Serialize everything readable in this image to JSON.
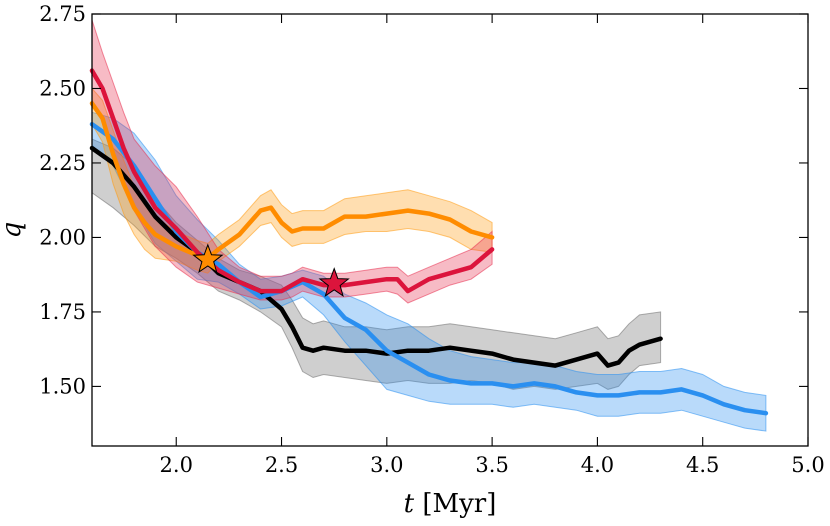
{
  "chart_data": {
    "type": "line",
    "title": "",
    "xlabel_var": "t",
    "xlabel_unit": " [Myr]",
    "ylabel": "q",
    "xlim": [
      1.6,
      5.0
    ],
    "ylim": [
      1.3,
      2.75
    ],
    "xticks": [
      2.0,
      2.5,
      3.0,
      3.5,
      4.0,
      4.5,
      5.0
    ],
    "xtick_labels": [
      "2.0",
      "2.5",
      "3.0",
      "3.5",
      "4.0",
      "4.5",
      "5.0"
    ],
    "yticks": [
      1.5,
      1.75,
      2.0,
      2.25,
      2.5,
      2.75
    ],
    "ytick_labels": [
      "1.50",
      "1.75",
      "2.00",
      "2.25",
      "2.50",
      "2.75"
    ],
    "grid": false,
    "colors": {
      "black": "#000000",
      "blue": "#2a8ff0",
      "orange": "#ff8c00",
      "red": "#dc143c"
    },
    "series": [
      {
        "name": "black",
        "color": "#000000",
        "band_color": "#6e6e6e",
        "x": [
          1.6,
          1.7,
          1.8,
          1.9,
          2.0,
          2.1,
          2.2,
          2.3,
          2.4,
          2.5,
          2.55,
          2.6,
          2.65,
          2.7,
          2.8,
          2.9,
          3.0,
          3.1,
          3.2,
          3.3,
          3.4,
          3.5,
          3.6,
          3.7,
          3.8,
          3.9,
          4.0,
          4.05,
          4.1,
          4.15,
          4.2,
          4.3
        ],
        "y": [
          2.3,
          2.25,
          2.17,
          2.07,
          2.0,
          1.95,
          1.88,
          1.85,
          1.82,
          1.76,
          1.7,
          1.63,
          1.62,
          1.63,
          1.62,
          1.62,
          1.61,
          1.62,
          1.62,
          1.63,
          1.62,
          1.61,
          1.59,
          1.58,
          1.57,
          1.59,
          1.61,
          1.57,
          1.58,
          1.62,
          1.64,
          1.66
        ],
        "upper": [
          2.33,
          2.3,
          2.24,
          2.13,
          2.05,
          1.99,
          1.93,
          1.89,
          1.87,
          1.84,
          1.79,
          1.73,
          1.71,
          1.72,
          1.7,
          1.7,
          1.69,
          1.7,
          1.7,
          1.71,
          1.7,
          1.69,
          1.68,
          1.67,
          1.66,
          1.68,
          1.7,
          1.66,
          1.67,
          1.71,
          1.74,
          1.75
        ],
        "lower": [
          2.15,
          2.1,
          2.04,
          1.97,
          1.93,
          1.88,
          1.82,
          1.79,
          1.75,
          1.7,
          1.63,
          1.55,
          1.53,
          1.54,
          1.53,
          1.52,
          1.51,
          1.52,
          1.51,
          1.51,
          1.52,
          1.51,
          1.49,
          1.5,
          1.49,
          1.5,
          1.51,
          1.49,
          1.5,
          1.54,
          1.57,
          1.58
        ]
      },
      {
        "name": "blue",
        "color": "#2a8ff0",
        "band_color": "#2a8ff0",
        "x": [
          1.6,
          1.7,
          1.8,
          1.9,
          2.0,
          2.1,
          2.2,
          2.3,
          2.4,
          2.5,
          2.6,
          2.7,
          2.8,
          2.9,
          3.0,
          3.1,
          3.2,
          3.3,
          3.4,
          3.5,
          3.6,
          3.7,
          3.8,
          3.9,
          4.0,
          4.1,
          4.2,
          4.3,
          4.4,
          4.5,
          4.6,
          4.7,
          4.8
        ],
        "y": [
          2.38,
          2.33,
          2.24,
          2.13,
          2.02,
          1.95,
          1.91,
          1.85,
          1.8,
          1.82,
          1.85,
          1.81,
          1.73,
          1.69,
          1.62,
          1.58,
          1.54,
          1.52,
          1.51,
          1.51,
          1.5,
          1.51,
          1.5,
          1.48,
          1.47,
          1.47,
          1.48,
          1.48,
          1.49,
          1.47,
          1.44,
          1.42,
          1.41
        ],
        "upper": [
          2.42,
          2.4,
          2.35,
          2.26,
          2.14,
          2.06,
          1.99,
          1.91,
          1.86,
          1.87,
          1.89,
          1.87,
          1.81,
          1.78,
          1.74,
          1.71,
          1.66,
          1.62,
          1.6,
          1.59,
          1.58,
          1.58,
          1.57,
          1.55,
          1.54,
          1.54,
          1.55,
          1.55,
          1.56,
          1.54,
          1.5,
          1.48,
          1.47
        ],
        "lower": [
          2.31,
          2.24,
          2.1,
          1.98,
          1.92,
          1.86,
          1.85,
          1.81,
          1.76,
          1.77,
          1.8,
          1.74,
          1.65,
          1.57,
          1.49,
          1.47,
          1.45,
          1.44,
          1.44,
          1.44,
          1.43,
          1.44,
          1.43,
          1.42,
          1.4,
          1.4,
          1.41,
          1.41,
          1.42,
          1.4,
          1.38,
          1.36,
          1.35
        ]
      },
      {
        "name": "orange",
        "color": "#ff8c00",
        "band_color": "#ff9a10",
        "x": [
          1.6,
          1.65,
          1.7,
          1.75,
          1.8,
          1.85,
          1.9,
          2.0,
          2.1,
          2.15,
          2.2,
          2.3,
          2.4,
          2.45,
          2.5,
          2.55,
          2.6,
          2.7,
          2.8,
          2.9,
          3.0,
          3.1,
          3.2,
          3.3,
          3.4,
          3.5
        ],
        "y": [
          2.45,
          2.4,
          2.28,
          2.18,
          2.1,
          2.05,
          2.01,
          1.97,
          1.94,
          1.93,
          1.96,
          2.01,
          2.09,
          2.1,
          2.05,
          2.02,
          2.03,
          2.03,
          2.07,
          2.07,
          2.08,
          2.09,
          2.08,
          2.06,
          2.02,
          2.0
        ],
        "upper": [
          2.5,
          2.46,
          2.36,
          2.26,
          2.17,
          2.11,
          2.07,
          2.02,
          1.99,
          1.98,
          2.01,
          2.06,
          2.14,
          2.16,
          2.11,
          2.08,
          2.09,
          2.09,
          2.13,
          2.14,
          2.15,
          2.16,
          2.14,
          2.12,
          2.09,
          2.05
        ],
        "lower": [
          2.38,
          2.32,
          2.18,
          2.08,
          2.01,
          1.96,
          1.93,
          1.92,
          1.89,
          1.88,
          1.92,
          1.97,
          2.04,
          2.05,
          2.0,
          1.97,
          1.98,
          1.98,
          2.01,
          2.02,
          2.02,
          2.03,
          2.02,
          2.0,
          1.96,
          1.95
        ]
      },
      {
        "name": "red",
        "color": "#dc143c",
        "band_color": "#e83050",
        "x": [
          1.6,
          1.65,
          1.7,
          1.75,
          1.8,
          1.9,
          2.0,
          2.1,
          2.2,
          2.3,
          2.4,
          2.5,
          2.55,
          2.6,
          2.7,
          2.8,
          2.9,
          3.0,
          3.05,
          3.1,
          3.2,
          3.3,
          3.4,
          3.5
        ],
        "y": [
          2.56,
          2.5,
          2.4,
          2.3,
          2.22,
          2.1,
          2.03,
          1.95,
          1.89,
          1.85,
          1.82,
          1.82,
          1.84,
          1.86,
          1.84,
          1.84,
          1.85,
          1.86,
          1.86,
          1.82,
          1.86,
          1.88,
          1.9,
          1.96
        ],
        "upper": [
          2.73,
          2.62,
          2.52,
          2.42,
          2.33,
          2.24,
          2.17,
          2.07,
          1.96,
          1.9,
          1.87,
          1.87,
          1.88,
          1.9,
          1.88,
          1.88,
          1.89,
          1.9,
          1.9,
          1.87,
          1.9,
          1.93,
          1.96,
          2.02
        ],
        "lower": [
          2.46,
          2.39,
          2.29,
          2.19,
          2.09,
          1.97,
          1.9,
          1.85,
          1.83,
          1.81,
          1.79,
          1.79,
          1.8,
          1.82,
          1.8,
          1.8,
          1.81,
          1.82,
          1.81,
          1.78,
          1.81,
          1.84,
          1.86,
          1.91
        ]
      }
    ],
    "markers": [
      {
        "name": "orange-star",
        "x": 2.15,
        "y": 1.925,
        "color": "#ff8c00"
      },
      {
        "name": "red-star",
        "x": 2.75,
        "y": 1.845,
        "color": "#dc143c"
      }
    ]
  }
}
